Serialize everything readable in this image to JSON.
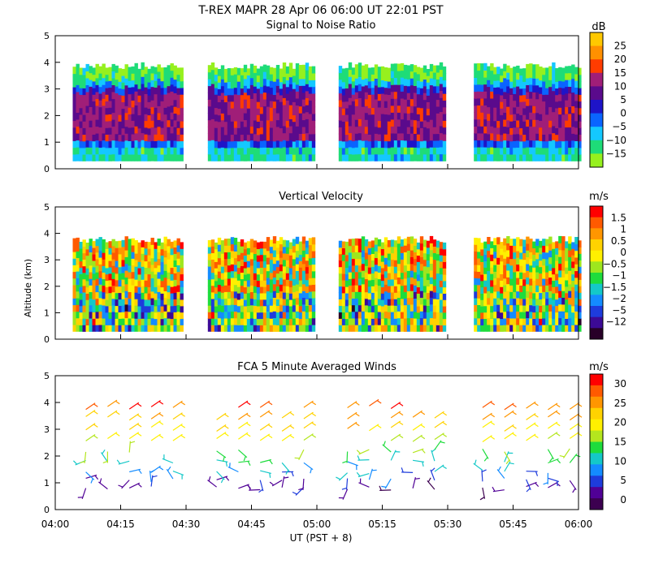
{
  "figure": {
    "title": "T-REX   MAPR 28 Apr 06   06:00 UT   22:01   PST",
    "xlabel": "UT   (PST + 8)",
    "ylabel": "Altitude (km)"
  },
  "chart_data": [
    {
      "type": "heatmap",
      "title": "Signal to Noise Ratio",
      "units": "dB",
      "x_range": [
        "04:00",
        "06:00"
      ],
      "x_ticks": [
        "04:00",
        "04:15",
        "04:30",
        "04:45",
        "05:00",
        "05:15",
        "05:30",
        "05:45",
        "06:00"
      ],
      "ylim": [
        0,
        5
      ],
      "y_ticks": [
        "0",
        "1",
        "2",
        "3",
        "4",
        "5"
      ],
      "data_segments_ut": [
        [
          "04:04",
          "04:29"
        ],
        [
          "04:35",
          "04:59"
        ],
        [
          "05:05",
          "05:29"
        ],
        [
          "05:36",
          "06:00"
        ]
      ],
      "data_altitude_km": [
        0.3,
        4.0
      ],
      "colorbar_labels": [
        "25",
        "20",
        "15",
        "10",
        "5",
        "0",
        "−5",
        "−10",
        "−15"
      ],
      "colorbar_colors": [
        "#ffc800",
        "#ff9000",
        "#ff3c00",
        "#a01e78",
        "#5a0a8c",
        "#1e14c8",
        "#0a64ff",
        "#14c8ff",
        "#1edc78",
        "#96f01e"
      ]
    },
    {
      "type": "heatmap",
      "title": "Vertical Velocity",
      "units": "m/s",
      "x_range": [
        "04:00",
        "06:00"
      ],
      "x_ticks": [
        "04:00",
        "04:15",
        "04:30",
        "04:45",
        "05:00",
        "05:15",
        "05:30",
        "05:45",
        "06:00"
      ],
      "ylim": [
        0,
        5
      ],
      "y_ticks": [
        "0",
        "1",
        "2",
        "3",
        "4",
        "5"
      ],
      "data_segments_ut": [
        [
          "04:04",
          "04:29"
        ],
        [
          "04:35",
          "04:59"
        ],
        [
          "05:05",
          "05:29"
        ],
        [
          "05:36",
          "06:00"
        ]
      ],
      "data_altitude_km": [
        0.3,
        3.9
      ],
      "colorbar_labels": [
        "1.5",
        "1",
        "0.5",
        "0",
        "−0.5",
        "−1",
        "−1.5",
        "−2",
        "−5",
        "−12"
      ],
      "colorbar_colors": [
        "#ff0000",
        "#ff5a00",
        "#ff9600",
        "#ffd200",
        "#fff000",
        "#9ee61e",
        "#1edc3c",
        "#14c8c8",
        "#148cff",
        "#1e3cdc",
        "#3c0a96",
        "#280028"
      ]
    },
    {
      "type": "scatter",
      "title": "FCA 5 Minute Averaged Winds",
      "units": "m/s",
      "x_range": [
        "04:00",
        "06:00"
      ],
      "x_ticks": [
        "04:00",
        "04:15",
        "04:30",
        "04:45",
        "05:00",
        "05:15",
        "05:30",
        "05:45",
        "06:00"
      ],
      "ylim": [
        0,
        5
      ],
      "y_ticks": [
        "0",
        "1",
        "2",
        "3",
        "4",
        "5"
      ],
      "columns_ut": [
        "04:07",
        "04:12",
        "04:17",
        "04:22",
        "04:27",
        "04:37",
        "04:42",
        "04:47",
        "04:52",
        "04:57",
        "05:07",
        "05:12",
        "05:17",
        "05:22",
        "05:27",
        "05:38",
        "05:43",
        "05:48",
        "05:53",
        "05:58"
      ],
      "colorbar_labels": [
        "30",
        "25",
        "20",
        "15",
        "10",
        "5",
        "0"
      ],
      "colorbar_colors": [
        "#ff0000",
        "#ff5a00",
        "#ff9600",
        "#ffd200",
        "#fff000",
        "#b4e61e",
        "#1edc3c",
        "#14c8c8",
        "#148cff",
        "#1e3cdc",
        "#500096",
        "#3c0050"
      ]
    }
  ]
}
